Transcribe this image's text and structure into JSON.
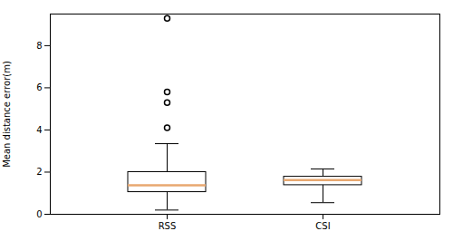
{
  "chart_data": {
    "type": "box",
    "categories": [
      "RSS",
      "CSI"
    ],
    "stats": [
      {
        "whisker_low": 0.2,
        "q1": 1.05,
        "median": 1.38,
        "q3": 2.0,
        "whisker_high": 3.35,
        "outliers": [
          4.1,
          5.3,
          5.8,
          9.3
        ]
      },
      {
        "whisker_low": 0.55,
        "q1": 1.38,
        "median": 1.62,
        "q3": 1.78,
        "whisker_high": 2.15,
        "outliers": []
      }
    ],
    "ylabel": "Mean distance error(m)",
    "ylim": [
      0,
      9.5
    ],
    "yticks": [
      0,
      2,
      4,
      6,
      8
    ],
    "color": "#e8a870",
    "grid": false
  }
}
